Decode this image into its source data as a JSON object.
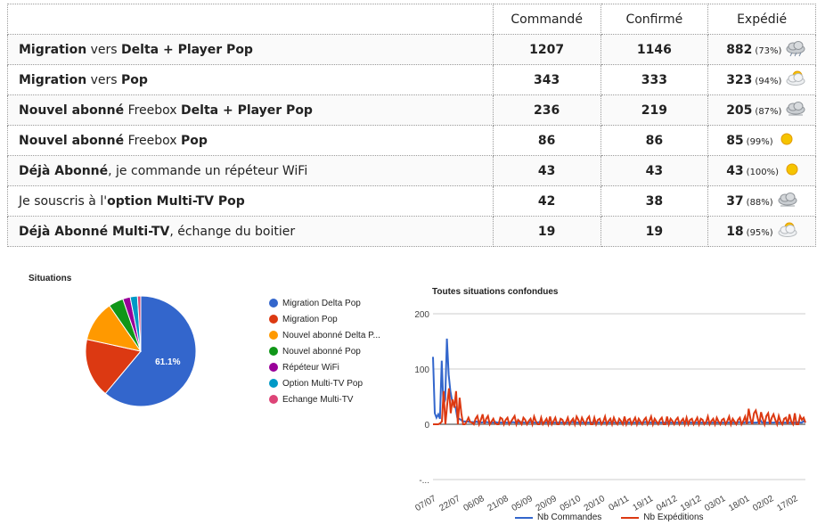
{
  "table": {
    "headers": [
      "Commandé",
      "Confirmé",
      "Expédié"
    ],
    "rows": [
      {
        "segments": [
          {
            "t": "Migration",
            "b": true
          },
          {
            "t": " vers ",
            "b": false
          },
          {
            "t": "Delta + Player Pop",
            "b": true
          }
        ],
        "ordered": "1207",
        "confirmed": "1146",
        "shipped": "882",
        "pct": "(73%)",
        "weather": "storm-cloud-icon"
      },
      {
        "segments": [
          {
            "t": "Migration",
            "b": true
          },
          {
            "t": " vers ",
            "b": false
          },
          {
            "t": "Pop",
            "b": true
          }
        ],
        "ordered": "343",
        "confirmed": "333",
        "shipped": "323",
        "pct": "(94%)",
        "weather": "sun-cloud-icon"
      },
      {
        "segments": [
          {
            "t": "Nouvel abonné",
            "b": true
          },
          {
            "t": " Freebox ",
            "b": false
          },
          {
            "t": "Delta + Player Pop",
            "b": true
          }
        ],
        "ordered": "236",
        "confirmed": "219",
        "shipped": "205",
        "pct": "(87%)",
        "weather": "cloud-icon"
      },
      {
        "segments": [
          {
            "t": "Nouvel abonné",
            "b": true
          },
          {
            "t": " Freebox ",
            "b": false
          },
          {
            "t": "Pop",
            "b": true
          }
        ],
        "ordered": "86",
        "confirmed": "86",
        "shipped": "85",
        "pct": "(99%)",
        "weather": "sun-icon"
      },
      {
        "segments": [
          {
            "t": "Déjà Abonné",
            "b": true
          },
          {
            "t": ", je commande un répéteur WiFi",
            "b": false
          }
        ],
        "ordered": "43",
        "confirmed": "43",
        "shipped": "43",
        "pct": "(100%)",
        "weather": "sun-icon"
      },
      {
        "segments": [
          {
            "t": "Je souscris à l'",
            "b": false
          },
          {
            "t": "option Multi-TV Pop",
            "b": true
          }
        ],
        "ordered": "42",
        "confirmed": "38",
        "shipped": "37",
        "pct": "(88%)",
        "weather": "cloud-icon"
      },
      {
        "segments": [
          {
            "t": "Déjà Abonné Multi-TV",
            "b": true
          },
          {
            "t": ", échange du boitier",
            "b": false
          }
        ],
        "ordered": "19",
        "confirmed": "19",
        "shipped": "18",
        "pct": "(95%)",
        "weather": "sun-cloud-icon"
      }
    ]
  },
  "chart_data": [
    {
      "type": "pie",
      "title": "Situations",
      "slices": [
        {
          "name": "Migration Delta Pop",
          "value": 1207,
          "color": "#3366cc"
        },
        {
          "name": "Migration Pop",
          "value": 343,
          "color": "#dc3912"
        },
        {
          "name": "Nouvel abonné Delta P...",
          "value": 236,
          "color": "#ff9900"
        },
        {
          "name": "Nouvel abonné Pop",
          "value": 86,
          "color": "#109618"
        },
        {
          "name": "Répéteur WiFi",
          "value": 43,
          "color": "#990099"
        },
        {
          "name": "Option Multi-TV Pop",
          "value": 42,
          "color": "#0099c6"
        },
        {
          "name": "Echange Multi-TV",
          "value": 19,
          "color": "#dd4477"
        }
      ],
      "slice_label": "61.1%",
      "legend_position": "right"
    },
    {
      "type": "line",
      "title": "Toutes situations confondues",
      "x_ticks": [
        "07/07",
        "22/07",
        "06/08",
        "21/08",
        "05/09",
        "20/09",
        "05/10",
        "20/10",
        "04/11",
        "19/11",
        "04/12",
        "19/12",
        "03/01",
        "18/01",
        "02/02",
        "17/02"
      ],
      "ylim": [
        -100,
        200
      ],
      "y_ticks": [
        "200",
        "100",
        "0",
        "-..."
      ],
      "grid": true,
      "legend_position": "bottom",
      "series": [
        {
          "name": "Nb Commandes",
          "color": "#3366cc",
          "values": [
            122,
            20,
            12,
            18,
            10,
            115,
            35,
            45,
            155,
            90,
            60,
            42,
            35,
            30,
            12,
            10,
            8,
            6,
            5,
            5,
            5,
            4,
            4,
            4,
            3,
            5,
            3,
            4,
            3,
            4,
            3,
            4,
            3,
            3,
            3,
            3,
            4,
            3,
            3,
            3,
            3,
            4,
            3,
            3,
            3,
            3,
            4,
            3,
            3,
            3,
            3,
            4,
            3,
            3,
            3,
            3,
            4,
            3,
            3,
            3,
            3,
            4,
            3,
            3,
            3,
            3,
            4,
            3,
            3,
            3,
            3,
            3,
            3,
            3,
            3,
            3,
            3,
            3,
            3,
            3,
            4,
            3,
            3,
            3,
            3,
            3,
            3,
            3,
            3,
            3,
            3,
            3,
            3,
            3,
            3,
            3,
            3,
            3,
            3,
            3,
            3,
            3,
            3,
            3,
            3,
            3,
            3,
            3,
            3,
            3,
            3,
            3,
            3,
            3,
            3,
            3,
            3,
            3,
            3,
            3,
            3,
            3,
            4,
            3,
            3,
            3,
            3,
            3,
            3,
            3,
            3,
            3,
            3,
            3,
            3,
            3,
            3,
            3,
            3,
            3,
            3,
            3,
            3,
            3,
            3,
            3,
            3,
            3,
            3,
            3,
            3,
            3,
            3,
            3,
            3,
            3,
            3,
            3,
            3,
            3,
            3,
            3,
            3,
            3,
            3,
            3,
            3,
            3,
            3,
            3,
            3,
            3,
            3,
            3,
            3,
            3,
            4,
            3,
            3,
            3,
            5,
            3,
            4,
            3,
            3,
            3,
            3,
            4,
            8,
            3,
            3,
            3,
            3,
            3,
            3,
            3,
            3,
            4,
            3,
            3,
            3,
            3,
            3,
            3,
            3,
            3,
            3,
            3,
            3,
            3,
            4,
            3,
            3,
            6,
            3
          ]
        },
        {
          "name": "Nb Expéditions",
          "color": "#dc3912",
          "values": [
            0,
            0,
            0,
            0,
            2,
            5,
            60,
            0,
            35,
            65,
            20,
            45,
            30,
            60,
            0,
            48,
            20,
            0,
            0,
            5,
            12,
            4,
            3,
            0,
            10,
            15,
            0,
            8,
            18,
            0,
            10,
            15,
            0,
            5,
            10,
            2,
            0,
            0,
            12,
            10,
            0,
            8,
            12,
            0,
            5,
            10,
            15,
            0,
            8,
            5,
            0,
            12,
            8,
            0,
            6,
            10,
            0,
            14,
            6,
            0,
            0,
            12,
            0,
            5,
            10,
            0,
            14,
            0,
            6,
            12,
            0,
            0,
            10,
            8,
            0,
            4,
            12,
            0,
            6,
            10,
            0,
            14,
            8,
            0,
            12,
            5,
            0,
            10,
            14,
            0,
            0,
            12,
            0,
            8,
            10,
            0,
            5,
            14,
            0,
            6,
            10,
            0,
            12,
            4,
            0,
            10,
            6,
            0,
            14,
            0,
            8,
            10,
            0,
            6,
            12,
            0,
            10,
            5,
            0,
            8,
            12,
            0,
            6,
            14,
            0,
            10,
            5,
            0,
            8,
            12,
            0,
            0,
            14,
            0,
            10,
            6,
            0,
            8,
            12,
            0,
            6,
            10,
            0,
            12,
            0,
            8,
            10,
            0,
            6,
            12,
            0,
            10,
            8,
            0,
            4,
            14,
            0,
            6,
            10,
            0,
            12,
            5,
            0,
            8,
            10,
            0,
            6,
            14,
            0,
            10,
            5,
            0,
            8,
            12,
            0,
            6,
            14,
            0,
            28,
            10,
            0,
            20,
            25,
            12,
            0,
            22,
            10,
            0,
            15,
            20,
            0,
            12,
            18,
            8,
            0,
            15,
            5,
            0,
            10,
            12,
            0,
            18,
            5,
            0,
            20,
            0,
            0,
            15,
            8,
            12,
            3
          ]
        }
      ]
    }
  ]
}
